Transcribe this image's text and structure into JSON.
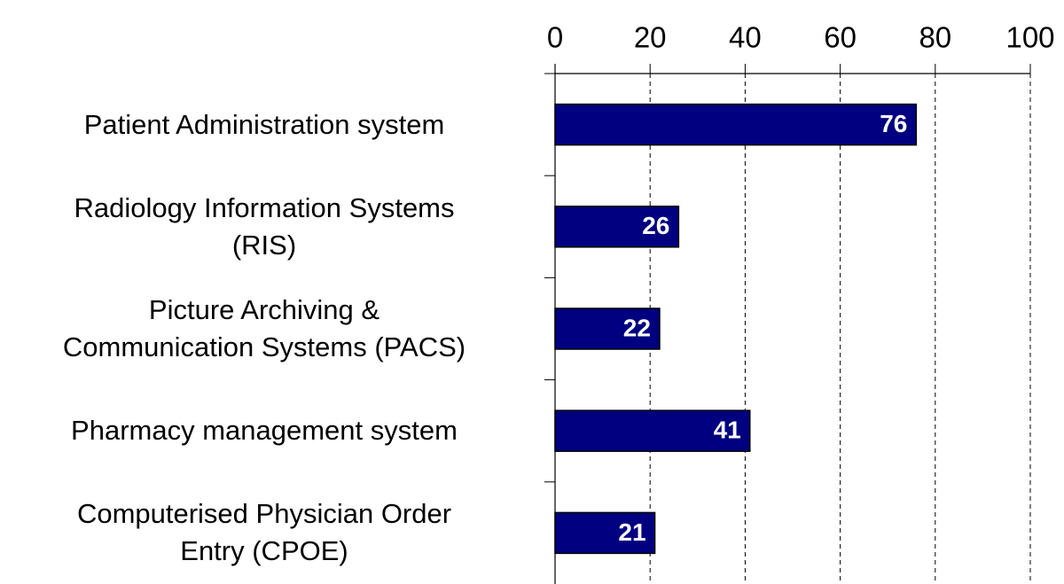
{
  "chart_data": {
    "type": "bar",
    "orientation": "horizontal",
    "categories": [
      "Patient Administration system",
      "Radiology Information Systems\n(RIS)",
      "Picture Archiving &\nCommunication Systems (PACS)",
      "Pharmacy management system",
      "Computerised Physician Order\nEntry (CPOE)"
    ],
    "values": [
      76,
      26,
      22,
      41,
      21
    ],
    "color": "#000080",
    "xlim": [
      0,
      100
    ],
    "xticks": [
      0,
      20,
      40,
      60,
      80,
      100
    ],
    "grid": true
  }
}
